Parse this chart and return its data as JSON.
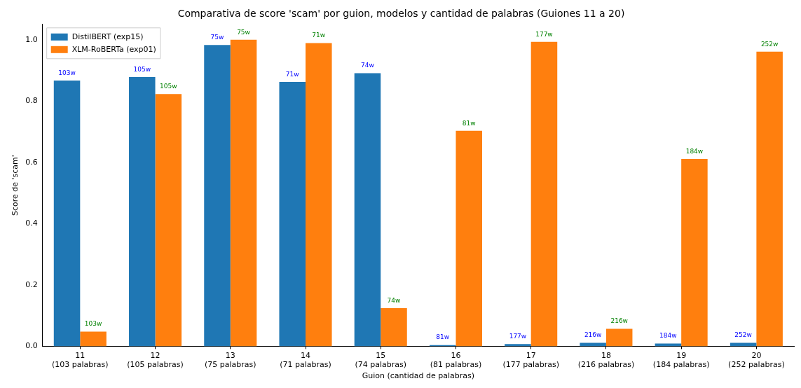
{
  "chart_data": {
    "type": "bar",
    "title": "Comparativa de score 'scam' por guion, modelos y cantidad de palabras (Guiones 11 a 20)",
    "xlabel": "Guion (cantidad de palabras)",
    "ylabel": "Score de 'scam'",
    "categories": [
      "11\n(103 palabras)",
      "12\n(105 palabras)",
      "13\n(75 palabras)",
      "14\n(71 palabras)",
      "15\n(74 palabras)",
      "16\n(81 palabras)",
      "17\n(177 palabras)",
      "18\n(216 palabras)",
      "19\n(184 palabras)",
      "20\n(252 palabras)"
    ],
    "series": [
      {
        "name": "DistilBERT (exp15)",
        "color": "#1f77b4",
        "values": [
          0.867,
          0.878,
          0.983,
          0.862,
          0.891,
          0.004,
          0.007,
          0.011,
          0.009,
          0.011
        ]
      },
      {
        "name": "XLM-RoBERTa (exp01)",
        "color": "#ff7f0e",
        "values": [
          0.048,
          0.823,
          1.0,
          0.989,
          0.124,
          0.703,
          0.993,
          0.057,
          0.611,
          0.961
        ]
      }
    ],
    "annotations": [
      {
        "text": "103w",
        "x": "11\n(103 palabras)",
        "y": 0.867
      },
      {
        "text": "105w",
        "x": "12\n(105 palabras)",
        "y": 0.878
      },
      {
        "text": "75w",
        "x": "13\n(75 palabras)",
        "y": 0.983
      },
      {
        "text": "71w",
        "x": "14\n(71 palabras)",
        "y": 0.862
      },
      {
        "text": "74w",
        "x": "15\n(74 palabras)",
        "y": 0.891
      },
      {
        "text": "81w",
        "x": "16\n(81 palabras)",
        "y": 0.004
      },
      {
        "text": "177w",
        "x": "17\n(177 palabras)",
        "y": 0.007
      },
      {
        "text": "216w",
        "x": "18\n(216 palabras)",
        "y": 0.011
      },
      {
        "text": "184w",
        "x": "19\n(184 palabras)",
        "y": 0.009
      },
      {
        "text": "252w",
        "x": "20\n(252 palabras)",
        "y": 0.011
      },
      {
        "text": "103w",
        "x": "11\n(103 palabras)",
        "y": 0.048
      },
      {
        "text": "105w",
        "x": "12\n(105 palabras)",
        "y": 0.823
      },
      {
        "text": "75w",
        "x": "13\n(75 palabras)",
        "y": 1.0
      },
      {
        "text": "71w",
        "x": "14\n(71 palabras)",
        "y": 0.989
      },
      {
        "text": "74w",
        "x": "15\n(74 palabras)",
        "y": 0.124
      },
      {
        "text": "81w",
        "x": "16\n(81 palabras)",
        "y": 0.703
      },
      {
        "text": "177w",
        "x": "17\n(177 palabras)",
        "y": 0.993
      },
      {
        "text": "216w",
        "x": "18\n(216 palabras)",
        "y": 0.057
      },
      {
        "text": "184w",
        "x": "19\n(184 palabras)",
        "y": 0.611
      },
      {
        "text": "252w",
        "x": "20\n(252 palabras)",
        "y": 0.961
      }
    ],
    "ylim": [
      0,
      1.05
    ],
    "yticks": [
      {
        "value": 0,
        "label": "0.0"
      },
      {
        "value": 0.2,
        "label": "0.2"
      },
      {
        "value": 0.4,
        "label": "0.4"
      },
      {
        "value": 0.6,
        "label": "0.6"
      },
      {
        "value": 0.8,
        "label": "0.8"
      },
      {
        "value": 1,
        "label": "1.0"
      }
    ],
    "grid": false,
    "legend": "top left"
  }
}
